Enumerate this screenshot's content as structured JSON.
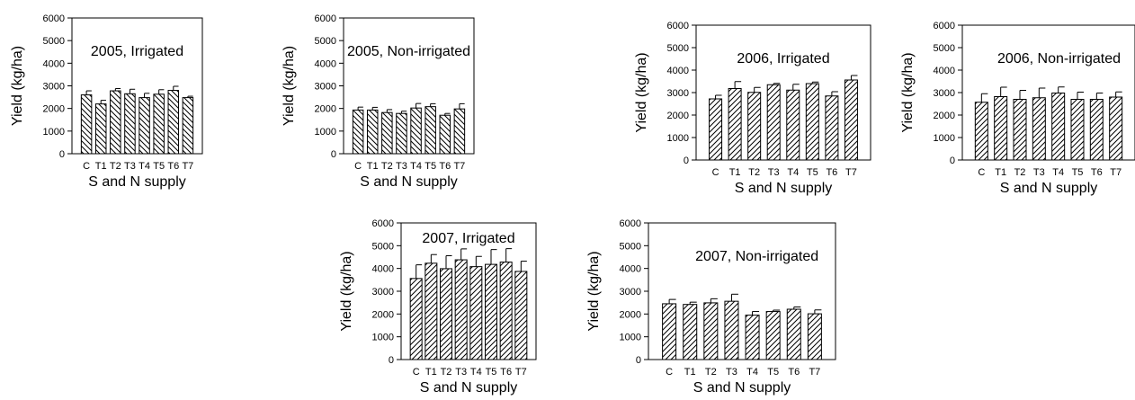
{
  "chart_data": [
    {
      "type": "bar",
      "title": "2005, Irrigated",
      "xlabel": "S and N supply",
      "ylabel": "Yield (kg/ha)",
      "ylim": [
        0,
        6000
      ],
      "yticks": [
        0,
        1000,
        2000,
        3000,
        4000,
        5000,
        6000
      ],
      "categories": [
        "C",
        "T1",
        "T2",
        "T3",
        "T4",
        "T5",
        "T6",
        "T7"
      ],
      "values": [
        2600,
        2200,
        2780,
        2650,
        2480,
        2630,
        2800,
        2480
      ],
      "errors": [
        180,
        160,
        100,
        200,
        190,
        200,
        180,
        60
      ],
      "hatch": "backslash"
    },
    {
      "type": "bar",
      "title": "2005, Non-irrigated",
      "xlabel": "S and N supply",
      "ylabel": "Yield (kg/ha)",
      "ylim": [
        0,
        6000
      ],
      "yticks": [
        0,
        1000,
        2000,
        3000,
        4000,
        5000,
        6000
      ],
      "categories": [
        "C",
        "T1",
        "T2",
        "T3",
        "T4",
        "T5",
        "T6",
        "T7"
      ],
      "values": [
        1930,
        1930,
        1820,
        1780,
        2020,
        2080,
        1700,
        1980
      ],
      "errors": [
        130,
        120,
        130,
        100,
        200,
        130,
        80,
        230
      ],
      "hatch": "backslash"
    },
    {
      "type": "bar",
      "title": "2006, Irrigated",
      "xlabel": "S and N supply",
      "ylabel": "Yield (kg/ha)",
      "ylim": [
        0,
        6000
      ],
      "yticks": [
        0,
        1000,
        2000,
        3000,
        4000,
        5000,
        6000
      ],
      "categories": [
        "C",
        "T1",
        "T2",
        "T3",
        "T4",
        "T5",
        "T6",
        "T7"
      ],
      "values": [
        2720,
        3180,
        3010,
        3350,
        3110,
        3400,
        2850,
        3560
      ],
      "errors": [
        160,
        310,
        220,
        60,
        260,
        70,
        190,
        200
      ],
      "hatch": "slash"
    },
    {
      "type": "bar",
      "title": "2006, Non-irrigated",
      "xlabel": "S and N supply",
      "ylabel": "Yield (kg/ha)",
      "ylim": [
        0,
        6000
      ],
      "yticks": [
        0,
        1000,
        2000,
        3000,
        4000,
        5000,
        6000
      ],
      "categories": [
        "C",
        "T1",
        "T2",
        "T3",
        "T4",
        "T5",
        "T6",
        "T7"
      ],
      "values": [
        2570,
        2820,
        2700,
        2770,
        2980,
        2700,
        2700,
        2800
      ],
      "errors": [
        380,
        420,
        400,
        430,
        270,
        320,
        280,
        230
      ],
      "hatch": "slash"
    },
    {
      "type": "bar",
      "title": "2007, Irrigated",
      "xlabel": "S and N supply",
      "ylabel": "Yield (kg/ha)",
      "ylim": [
        0,
        6000
      ],
      "yticks": [
        0,
        1000,
        2000,
        3000,
        4000,
        5000,
        6000
      ],
      "categories": [
        "C",
        "T1",
        "T2",
        "T3",
        "T4",
        "T5",
        "T6",
        "T7"
      ],
      "values": [
        3560,
        4230,
        3990,
        4380,
        4080,
        4180,
        4280,
        3870
      ],
      "errors": [
        600,
        380,
        570,
        480,
        450,
        650,
        590,
        450
      ],
      "hatch": "slash"
    },
    {
      "type": "bar",
      "title": "2007, Non-irrigated",
      "xlabel": "S and N supply",
      "ylabel": "Yield (kg/ha)",
      "ylim": [
        0,
        6000
      ],
      "yticks": [
        0,
        1000,
        2000,
        3000,
        4000,
        5000,
        6000
      ],
      "categories": [
        "C",
        "T1",
        "T2",
        "T3",
        "T4",
        "T5",
        "T6",
        "T7"
      ],
      "values": [
        2450,
        2420,
        2490,
        2560,
        1950,
        2110,
        2210,
        2010
      ],
      "errors": [
        190,
        100,
        180,
        310,
        160,
        60,
        100,
        170
      ],
      "hatch": "slash"
    }
  ]
}
